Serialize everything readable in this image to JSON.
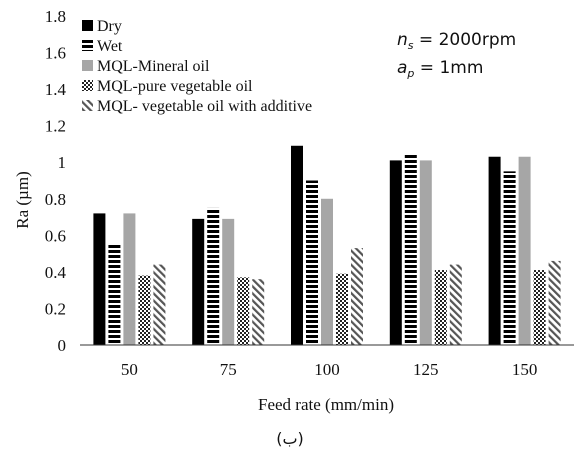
{
  "chart_data": {
    "type": "bar",
    "categories": [
      "50",
      "75",
      "100",
      "125",
      "150"
    ],
    "series": [
      {
        "name": "Dry",
        "values": [
          0.72,
          0.69,
          1.09,
          1.01,
          1.03
        ],
        "pattern": "solid-black"
      },
      {
        "name": "Wet",
        "values": [
          0.55,
          0.75,
          0.9,
          1.04,
          0.95
        ],
        "pattern": "horizontal-stripes"
      },
      {
        "name": "MQL-Mineral oil",
        "values": [
          0.72,
          0.69,
          0.8,
          1.01,
          1.03
        ],
        "pattern": "solid-gray"
      },
      {
        "name": "MQL-pure vegetable oil",
        "values": [
          0.38,
          0.37,
          0.39,
          0.41,
          0.41
        ],
        "pattern": "checker"
      },
      {
        "name": "MQL- vegetable oil with additive",
        "values": [
          0.44,
          0.36,
          0.53,
          0.44,
          0.46
        ],
        "pattern": "diagonal-stripes"
      }
    ],
    "xlabel": "Feed rate (mm/min)",
    "ylabel": "Ra (µm)",
    "ylim": [
      0,
      1.8
    ],
    "yticks": [
      "0",
      "0.2",
      "0.4",
      "0.6",
      "0.8",
      "1",
      "1.2",
      "1.4",
      "1.6",
      "1.8"
    ],
    "legend_position": "top-left",
    "annotations": [
      {
        "var": "n",
        "sub": "s",
        "text": " = 2000rpm"
      },
      {
        "var": "a",
        "sub": "p",
        "text": " = 1mm"
      }
    ],
    "caption": "(ب)",
    "colors": {
      "black": "#000000",
      "gray": "#a6a6a6",
      "axis": "#333333"
    }
  }
}
